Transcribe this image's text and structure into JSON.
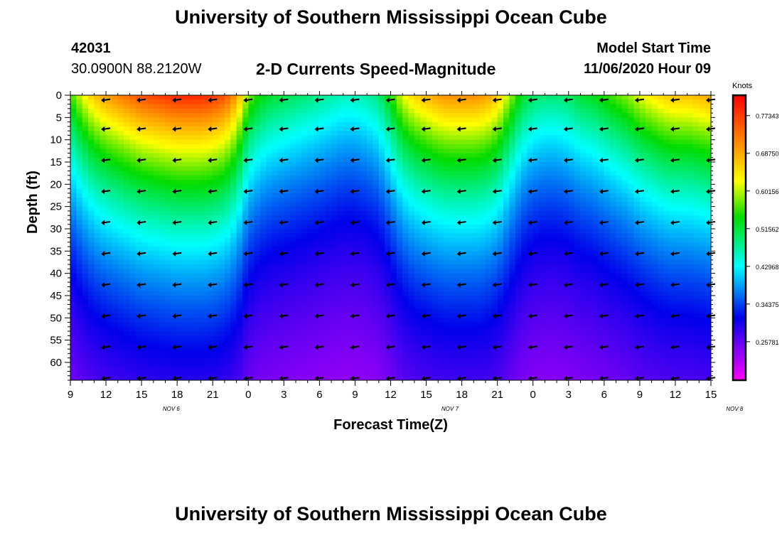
{
  "header": {
    "title": "University of Southern Mississippi Ocean Cube",
    "station_id": "42031",
    "station_coords": "30.0900N 88.2120W",
    "model_start_label": "Model Start Time",
    "model_start_time": "11/06/2020 Hour 09",
    "footer_title": "University of Southern Mississippi Ocean Cube"
  },
  "chart_data": {
    "type": "heatmap",
    "title": "2-D Currents Speed-Magnitude",
    "xlabel": "Forecast Time(Z)",
    "ylabel": "Depth (ft)",
    "x_start_hour": 9,
    "x_end_hour": 63,
    "x_tick_step_hours": 3,
    "x_ticks": [
      "9",
      "12",
      "15",
      "18",
      "21",
      "0",
      "3",
      "6",
      "9",
      "12",
      "15",
      "18",
      "21",
      "0",
      "3",
      "6",
      "9",
      "12",
      "15"
    ],
    "date_labels": [
      {
        "label": "NOV  6",
        "hour": 17.5
      },
      {
        "label": "NOV  7",
        "hour": 41
      },
      {
        "label": "NOV  8",
        "hour": 65
      }
    ],
    "ylim": [
      0,
      64
    ],
    "y_ticks": [
      0,
      5,
      10,
      15,
      20,
      25,
      30,
      35,
      40,
      45,
      50,
      55,
      60
    ],
    "y_reversed": true,
    "colorbar": {
      "unit": "Knots",
      "min": 0.17,
      "max": 0.82,
      "labels": [
        "0.77343",
        "0.68750",
        "0.60156",
        "0.51562",
        "0.42968",
        "0.34375",
        "0.25781"
      ],
      "values": [
        0.77343,
        0.6875,
        0.60156,
        0.51562,
        0.42968,
        0.34375,
        0.25781
      ]
    },
    "vector_hours": [
      12,
      15,
      18,
      21,
      24,
      27,
      30,
      33,
      36,
      39,
      42,
      45,
      48,
      51,
      54,
      57,
      60,
      63
    ],
    "vector_depths": [
      0.5,
      7,
      14,
      21,
      28,
      35,
      42,
      49,
      56,
      63
    ],
    "vector_direction": "west",
    "surface_speed_profile": {
      "hours": [
        9,
        10,
        11,
        12,
        13,
        14,
        15,
        16,
        17,
        18,
        19,
        20,
        21,
        22,
        23,
        24,
        25,
        26,
        27,
        28,
        29,
        30,
        31,
        32,
        33,
        34,
        35,
        36,
        37,
        38,
        39,
        40,
        41,
        42,
        43,
        44,
        45,
        46,
        47,
        48,
        49,
        50,
        51,
        52,
        53,
        54,
        55,
        56,
        57,
        58,
        59,
        60,
        61,
        62,
        63
      ],
      "speeds": [
        0.56,
        0.62,
        0.67,
        0.7,
        0.72,
        0.74,
        0.76,
        0.77,
        0.78,
        0.79,
        0.79,
        0.79,
        0.78,
        0.76,
        0.7,
        0.58,
        0.54,
        0.52,
        0.51,
        0.5,
        0.49,
        0.48,
        0.47,
        0.46,
        0.46,
        0.47,
        0.49,
        0.55,
        0.62,
        0.66,
        0.68,
        0.7,
        0.71,
        0.71,
        0.71,
        0.7,
        0.67,
        0.6,
        0.53,
        0.5,
        0.49,
        0.49,
        0.5,
        0.52,
        0.53,
        0.55,
        0.57,
        0.59,
        0.62,
        0.64,
        0.66,
        0.67,
        0.67,
        0.68,
        0.69
      ]
    },
    "decay_depth_ft": 38,
    "bottom_speed_knots": 0.18
  }
}
